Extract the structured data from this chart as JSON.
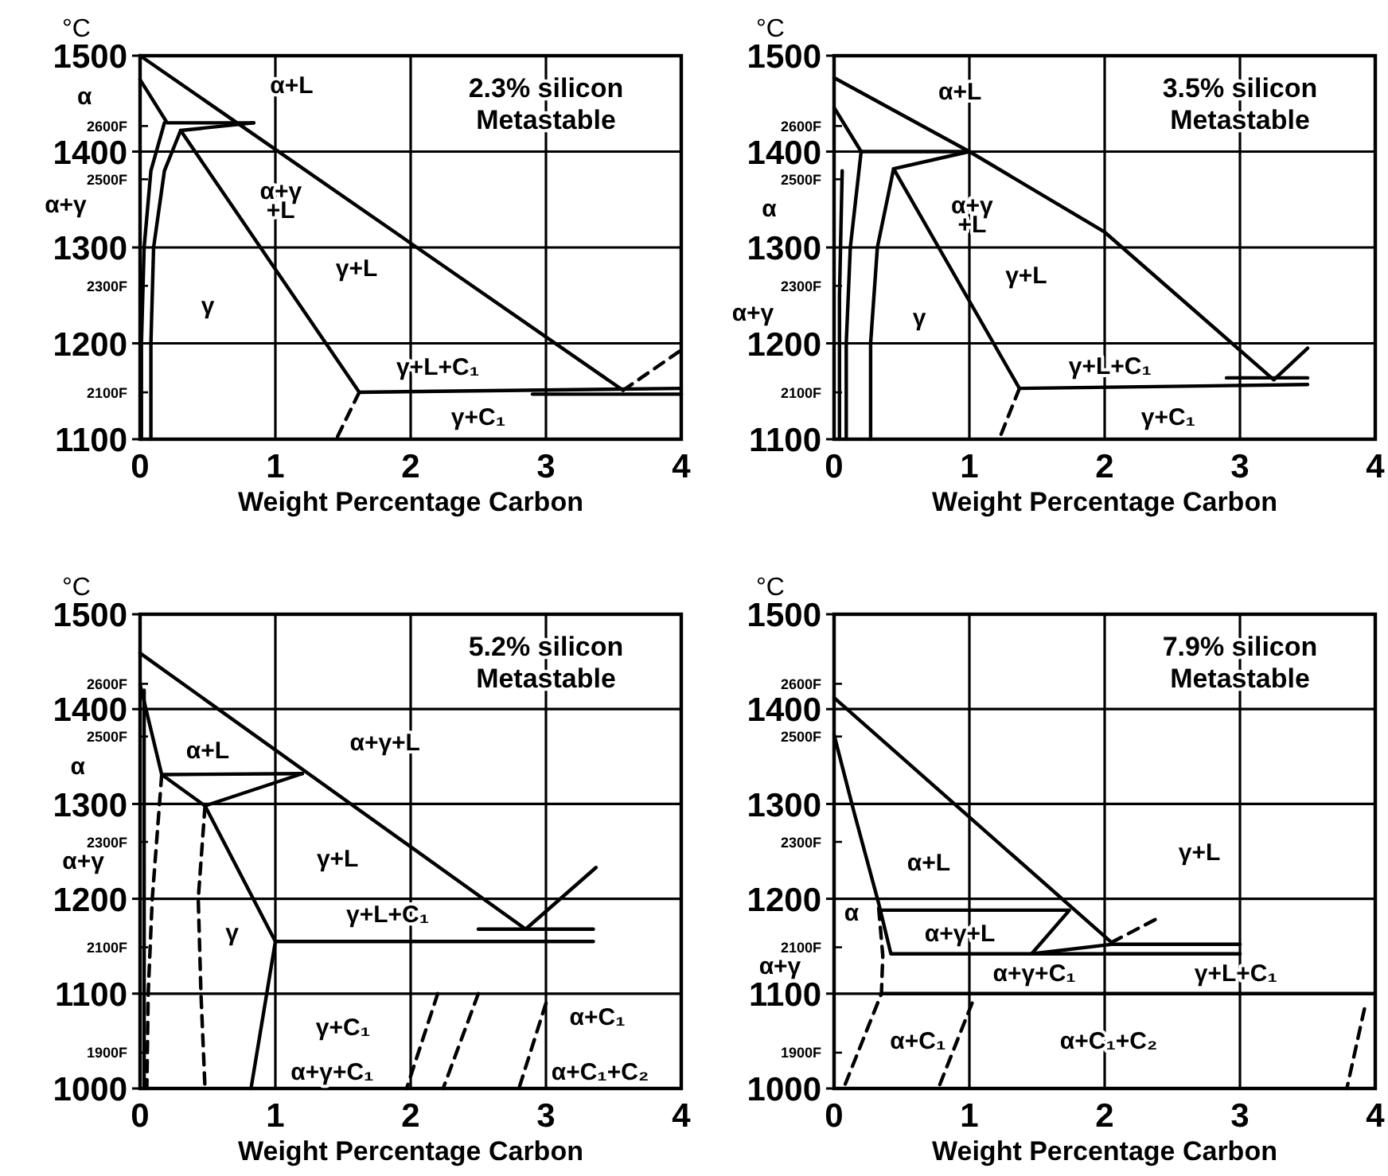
{
  "chart_data": [
    {
      "type": "line",
      "title": "2.3% silicon",
      "subtitle": "Metastable",
      "xlabel": "Weight Percentage Carbon",
      "ylabel": "°C",
      "xlim": [
        0,
        4
      ],
      "xticks": [
        0,
        1,
        2,
        3,
        4
      ],
      "ylim": [
        1100,
        1500
      ],
      "yticks": [
        1100,
        1200,
        1300,
        1400,
        1500
      ],
      "y2lim": [
        2012,
        2732
      ],
      "y2ticks": [
        {
          "value": 2100,
          "label": "2100F"
        },
        {
          "value": 2300,
          "label": "2300F"
        },
        {
          "value": 2500,
          "label": "2500F"
        },
        {
          "value": 2600,
          "label": "2600F"
        }
      ],
      "grid": true,
      "series": [
        {
          "color": "#000000",
          "x": [
            0,
            3.57
          ],
          "values": [
            1500,
            1151
          ]
        },
        {
          "color": "#000000",
          "x": [
            3.57,
            4
          ],
          "values": [
            1151,
            1193
          ],
          "line_style": "dashed"
        },
        {
          "color": "#000000",
          "x": [
            0,
            0.2,
            0.84
          ],
          "values": [
            1475,
            1430,
            1430
          ]
        },
        {
          "color": "#000000",
          "x": [
            0.84,
            0.3,
            1.62,
            4
          ],
          "values": [
            1430,
            1422,
            1149,
            1153
          ]
        },
        {
          "color": "#000000",
          "x": [
            0.18,
            0.08,
            0.03,
            0.01,
            0.01
          ],
          "values": [
            1430,
            1380,
            1300,
            1200,
            1100
          ]
        },
        {
          "color": "#000000",
          "x": [
            0.3,
            0.18,
            0.1,
            0.08,
            0.08
          ],
          "values": [
            1422,
            1380,
            1300,
            1200,
            1100
          ]
        },
        {
          "color": "#000000",
          "x": [
            2.9,
            4
          ],
          "values": [
            1147,
            1147
          ]
        },
        {
          "color": "#000000",
          "x": [
            1.62,
            1.45
          ],
          "values": [
            1149,
            1100
          ],
          "line_style": "dashed"
        }
      ],
      "annotations": [
        "α+L",
        "α+γ +L",
        "γ+L",
        "γ",
        "γ+L+C₁",
        "γ+C₁",
        "α",
        "α+γ"
      ]
    },
    {
      "type": "line",
      "title": "3.5% silicon",
      "subtitle": "Metastable",
      "xlabel": "Weight Percentage Carbon",
      "ylabel": "°C",
      "xlim": [
        0,
        4
      ],
      "xticks": [
        0,
        1,
        2,
        3,
        4
      ],
      "ylim": [
        1100,
        1500
      ],
      "yticks": [
        1100,
        1200,
        1300,
        1400,
        1500
      ],
      "y2lim": [
        2012,
        2732
      ],
      "y2ticks": [
        {
          "value": 2100,
          "label": "2100F"
        },
        {
          "value": 2300,
          "label": "2300F"
        },
        {
          "value": 2500,
          "label": "2500F"
        },
        {
          "value": 2600,
          "label": "2600F"
        }
      ],
      "grid": true,
      "series": [
        {
          "color": "#000000",
          "x": [
            0,
            1,
            2,
            3.25,
            3.5
          ],
          "values": [
            1477,
            1400,
            1316,
            1162,
            1195
          ]
        },
        {
          "color": "#000000",
          "x": [
            0,
            0.2,
            1
          ],
          "values": [
            1446,
            1400,
            1400
          ]
        },
        {
          "color": "#000000",
          "x": [
            1,
            0.44,
            1.37,
            3.5
          ],
          "values": [
            1400,
            1382,
            1153,
            1157
          ]
        },
        {
          "color": "#000000",
          "x": [
            0.2,
            0.12,
            0.09,
            0.09
          ],
          "values": [
            1400,
            1300,
            1200,
            1100
          ]
        },
        {
          "color": "#000000",
          "x": [
            0.44,
            0.32,
            0.27,
            0.27
          ],
          "values": [
            1382,
            1300,
            1200,
            1100
          ]
        },
        {
          "color": "#000000",
          "x": [
            0.06,
            0.04,
            0.04
          ],
          "values": [
            1380,
            1250,
            1100
          ]
        },
        {
          "color": "#000000",
          "x": [
            2.9,
            3.5
          ],
          "values": [
            1164,
            1164
          ]
        },
        {
          "color": "#000000",
          "x": [
            1.37,
            1.22
          ],
          "values": [
            1153,
            1100
          ],
          "line_style": "dashed"
        }
      ],
      "annotations": [
        "α+L",
        "α+γ +L",
        "γ+L",
        "γ",
        "γ+L+C₁",
        "γ+C₁",
        "α",
        "α+γ"
      ]
    },
    {
      "type": "line",
      "title": "5.2% silicon",
      "subtitle": "Metastable",
      "xlabel": "Weight Percentage Carbon",
      "ylabel": "°C",
      "xlim": [
        0,
        4
      ],
      "xticks": [
        0,
        1,
        2,
        3,
        4
      ],
      "ylim": [
        1000,
        1500
      ],
      "yticks": [
        1000,
        1100,
        1200,
        1300,
        1400,
        1500
      ],
      "y2lim": [
        1832,
        2732
      ],
      "y2ticks": [
        {
          "value": 1900,
          "label": "1900F"
        },
        {
          "value": 2100,
          "label": "2100F"
        },
        {
          "value": 2300,
          "label": "2300F"
        },
        {
          "value": 2500,
          "label": "2500F"
        },
        {
          "value": 2600,
          "label": "2600F"
        }
      ],
      "grid": true,
      "series": [
        {
          "color": "#000000",
          "x": [
            0,
            2.85,
            3.37
          ],
          "values": [
            1459,
            1168,
            1233
          ]
        },
        {
          "color": "#000000",
          "x": [
            0,
            0.16,
            1.2
          ],
          "values": [
            1426,
            1331,
            1332
          ]
        },
        {
          "color": "#000000",
          "x": [
            1.2,
            0.48
          ],
          "values": [
            1332,
            1298
          ]
        },
        {
          "color": "#000000",
          "x": [
            0.16,
            0.48,
            1,
            3.35
          ],
          "values": [
            1331,
            1298,
            1155,
            1155
          ]
        },
        {
          "color": "#000000",
          "x": [
            0.16,
            0.09,
            0.06,
            0.05
          ],
          "values": [
            1331,
            1200,
            1100,
            1000
          ],
          "line_style": "dashed"
        },
        {
          "color": "#000000",
          "x": [
            0.03,
            0.03
          ],
          "values": [
            1420,
            1000
          ]
        },
        {
          "color": "#000000",
          "x": [
            0.48,
            0.43,
            0.45,
            0.48
          ],
          "values": [
            1298,
            1200,
            1100,
            1000
          ],
          "line_style": "dashed"
        },
        {
          "color": "#000000",
          "x": [
            1,
            0.82
          ],
          "values": [
            1155,
            1000
          ]
        },
        {
          "color": "#000000",
          "x": [
            2.5,
            3.35
          ],
          "values": [
            1168,
            1168
          ]
        },
        {
          "color": "#000000",
          "x": [
            2.2,
            1.97
          ],
          "values": [
            1100,
            1000
          ],
          "line_style": "dashed"
        },
        {
          "color": "#000000",
          "x": [
            2.5,
            2.24
          ],
          "values": [
            1100,
            1000
          ],
          "line_style": "dashed"
        },
        {
          "color": "#000000",
          "x": [
            3,
            2.8
          ],
          "values": [
            1090,
            1000
          ],
          "line_style": "dashed"
        }
      ],
      "annotations": [
        "α+L",
        "α+γ+L",
        "γ+L",
        "γ",
        "γ+L+C₁",
        "γ+C₁",
        "α+γ+C₁",
        "α+C₁",
        "α+C₁+C₂",
        "α",
        "α+γ"
      ]
    },
    {
      "type": "line",
      "title": "7.9% silicon",
      "subtitle": "Metastable",
      "xlabel": "Weight Percentage Carbon",
      "ylabel": "°C",
      "xlim": [
        0,
        4
      ],
      "xticks": [
        0,
        1,
        2,
        3,
        4
      ],
      "ylim": [
        1000,
        1500
      ],
      "yticks": [
        1000,
        1100,
        1200,
        1300,
        1400,
        1500
      ],
      "y2lim": [
        1832,
        2732
      ],
      "y2ticks": [
        {
          "value": 1900,
          "label": "1900F"
        },
        {
          "value": 2100,
          "label": "2100F"
        },
        {
          "value": 2300,
          "label": "2300F"
        },
        {
          "value": 2500,
          "label": "2500F"
        },
        {
          "value": 2600,
          "label": "2600F"
        }
      ],
      "grid": true,
      "series": [
        {
          "color": "#000000",
          "x": [
            0,
            2.05
          ],
          "values": [
            1412,
            1154
          ]
        },
        {
          "color": "#000000",
          "x": [
            2.05,
            2.4
          ],
          "values": [
            1154,
            1180
          ],
          "line_style": "dashed"
        },
        {
          "color": "#000000",
          "x": [
            0,
            0.15,
            0.33,
            0.42,
            3
          ],
          "values": [
            1373,
            1290,
            1195,
            1142,
            1142
          ]
        },
        {
          "color": "#000000",
          "x": [
            0.35,
            1.74,
            1.46
          ],
          "values": [
            1188,
            1188,
            1142
          ]
        },
        {
          "color": "#000000",
          "x": [
            1.46,
            2.05,
            3
          ],
          "values": [
            1142,
            1152,
            1152
          ]
        },
        {
          "color": "#000000",
          "x": [
            0.35,
            4
          ],
          "values": [
            1100,
            1100
          ]
        },
        {
          "color": "#000000",
          "x": [
            0.33,
            0.36,
            0.35,
            0.07
          ],
          "values": [
            1190,
            1140,
            1100,
            1000
          ],
          "line_style": "dashed"
        },
        {
          "color": "#000000",
          "x": [
            1.02,
            0.77
          ],
          "values": [
            1090,
            1000
          ],
          "line_style": "dashed"
        },
        {
          "color": "#000000",
          "x": [
            3.92,
            3.79
          ],
          "values": [
            1084,
            1000
          ],
          "line_style": "dashed"
        }
      ],
      "annotations": [
        "α+L",
        "γ+L",
        "α",
        "α+γ+L",
        "α+γ+C₁",
        "γ+L+C₁",
        "α+C₁",
        "α+C₁+C₂",
        "α+γ"
      ]
    }
  ]
}
